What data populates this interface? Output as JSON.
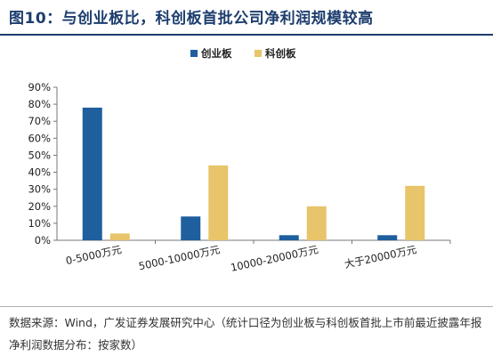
{
  "title": "图10：与创业板比，科创板首批公司净利润规模较高",
  "source_text": "数据来源：Wind，广发证券发展研究中心（统计口径为创业板与科创板首批上市前最近披露年报净利润数据分布：按家数）",
  "chart_data": {
    "type": "bar",
    "categories": [
      "0-5000万元",
      "5000-10000万元",
      "10000-20000万元",
      "大于20000万元"
    ],
    "series": [
      {
        "name": "创业板",
        "values": [
          78,
          14,
          3,
          3
        ],
        "color": "#1f5f9e"
      },
      {
        "name": "科创板",
        "values": [
          4,
          44,
          20,
          32
        ],
        "color": "#e8c46a"
      }
    ],
    "yticks": [
      "0%",
      "10%",
      "20%",
      "30%",
      "40%",
      "50%",
      "60%",
      "70%",
      "80%",
      "90%"
    ],
    "ylim": [
      0,
      90
    ],
    "legend_position": "top-center",
    "grid": false
  }
}
